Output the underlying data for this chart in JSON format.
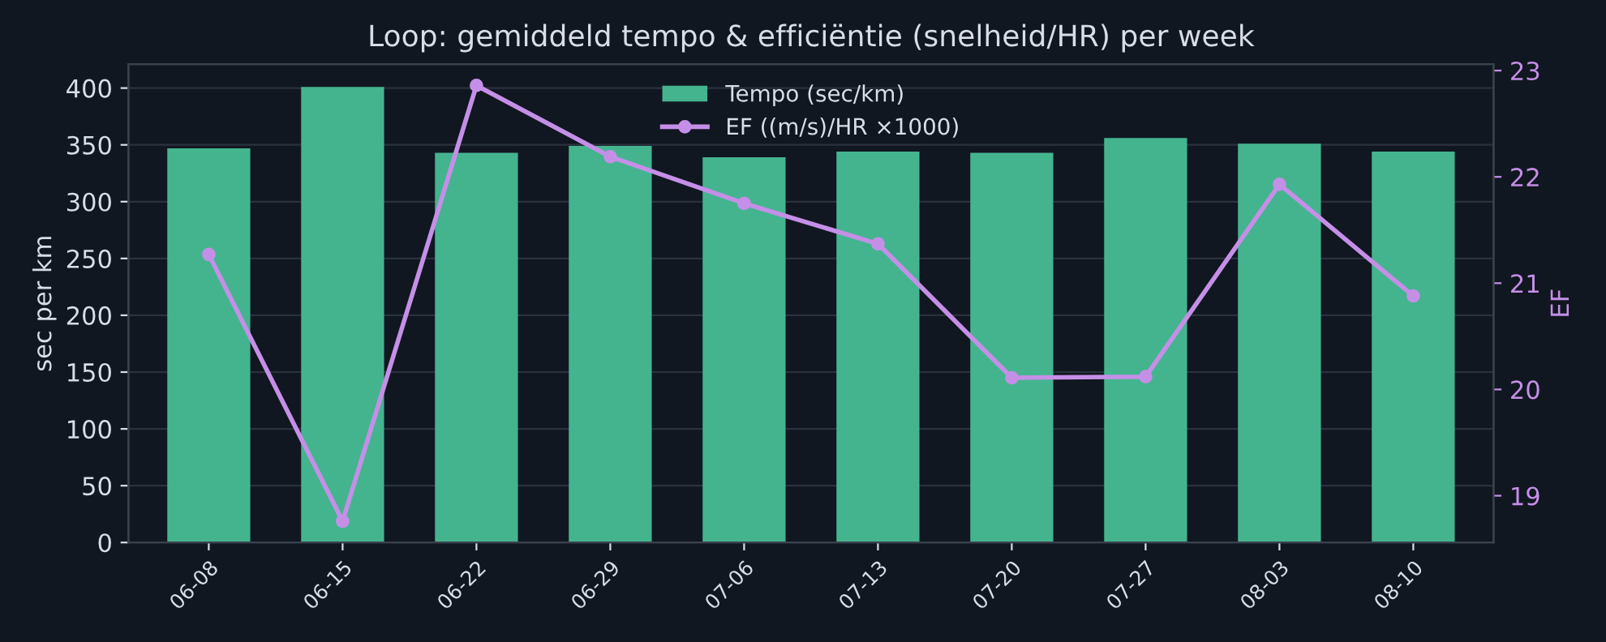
{
  "chart_data": {
    "type": "bar",
    "title": "Loop: gemiddeld tempo & efficiëntie (snelheid/HR) per week",
    "categories": [
      "06-08",
      "06-15",
      "06-22",
      "06-29",
      "07-06",
      "07-13",
      "07-20",
      "07-27",
      "08-03",
      "08-10"
    ],
    "series": [
      {
        "name": "Tempo (sec/km)",
        "color": "#44b48f",
        "values": [
          347,
          401,
          343,
          349,
          339,
          344,
          343,
          356,
          351,
          344
        ]
      },
      {
        "name": "EF ((m/s)/HR ×1000)",
        "type": "line",
        "axis": "y2",
        "color": "#c58fe8",
        "values": [
          21.27,
          18.76,
          22.86,
          22.19,
          21.75,
          21.37,
          20.11,
          20.12,
          21.93,
          20.88
        ]
      }
    ],
    "ylabel": "sec per km",
    "y2label": "EF",
    "ylim": [
      0,
      421
    ],
    "yticks": [
      0,
      50,
      100,
      150,
      200,
      250,
      300,
      350,
      400
    ],
    "y2lim": [
      18.56,
      23.06
    ],
    "y2ticks": [
      19,
      20,
      21,
      22,
      23
    ],
    "grid": "y",
    "legend": "top",
    "marker": "circle",
    "line_style": "solid"
  }
}
